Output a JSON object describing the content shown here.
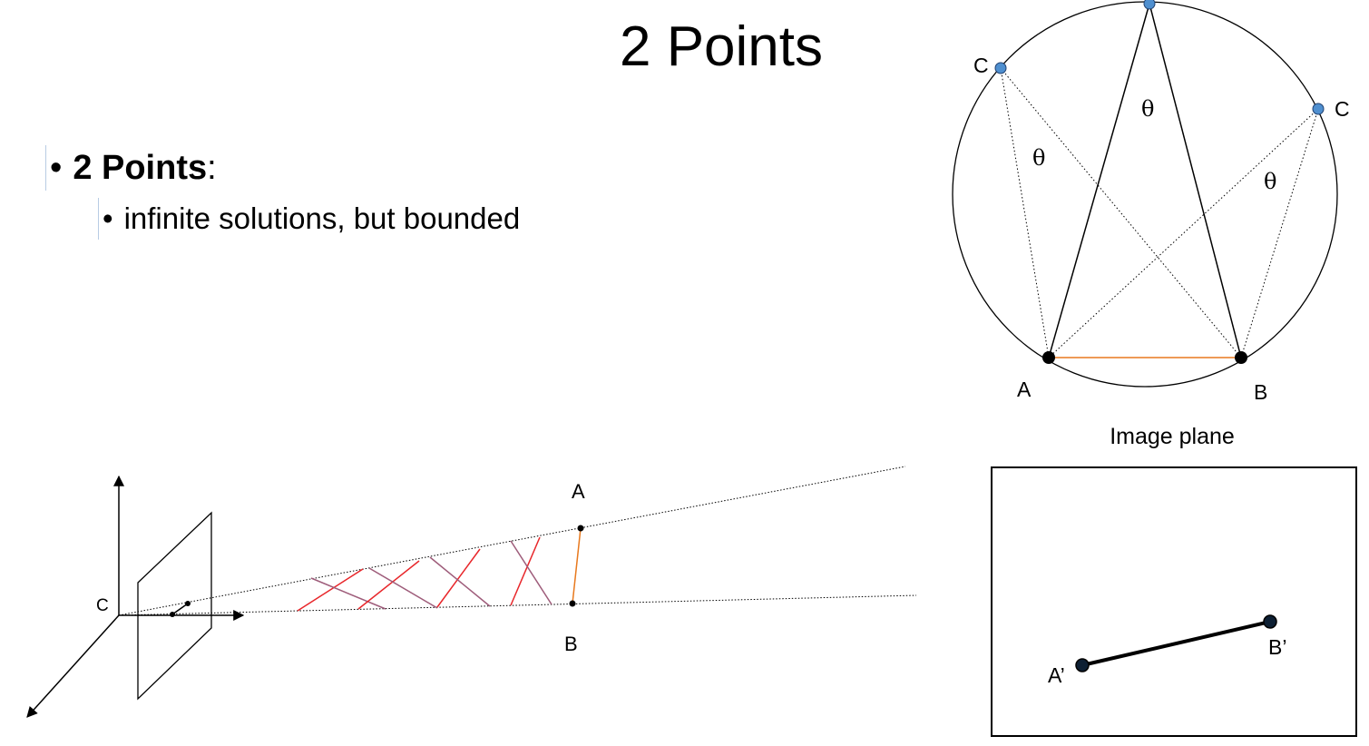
{
  "slide": {
    "title": "2 Points",
    "bullets": [
      {
        "bullet": "•",
        "bold": "2 Points",
        "suffix": ":",
        "sub": [
          {
            "bullet": "•",
            "text": "infinite solutions, but bounded"
          }
        ]
      }
    ]
  },
  "circle_diagram": {
    "label_a": "A",
    "label_b": "B",
    "label_c_left": "C",
    "label_c_right": "C",
    "angle_symbol": "θ"
  },
  "image_plane": {
    "title": "Image plane",
    "label_a_prime": "A’",
    "label_b_prime": "B’"
  },
  "camera_diagram": {
    "label_c": "C",
    "label_a": "A",
    "label_b": "B"
  },
  "colors": {
    "ink": "#000000",
    "chord": "#e8791e",
    "c_point": "#4f8fcf",
    "red_segment": "#e8262a",
    "purple_segment": "#9e5c7a"
  }
}
